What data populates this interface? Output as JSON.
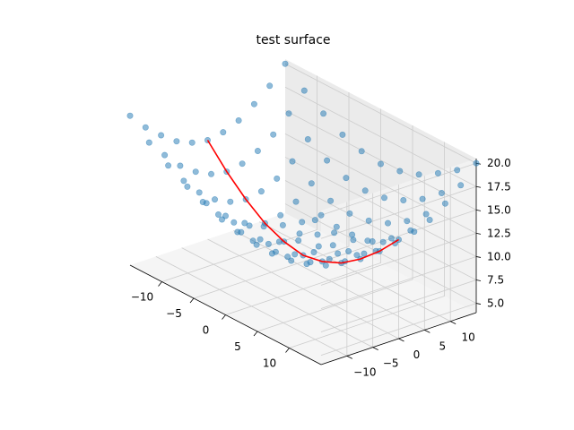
{
  "chart_data": {
    "type": "scatter",
    "projection": "3d",
    "title": "test surface",
    "xlabel": "",
    "ylabel": "",
    "zlabel": "",
    "xlim": [
      -15,
      15
    ],
    "ylim": [
      -15,
      15
    ],
    "zlim": [
      4,
      20.5
    ],
    "x_ticks": [
      -10,
      -5,
      0,
      5,
      10
    ],
    "x_tick_labels": [
      "−10",
      "−5",
      "0",
      "5",
      "10"
    ],
    "y_ticks": [
      -10,
      -5,
      0,
      5,
      10
    ],
    "y_tick_labels": [
      "−10",
      "−5",
      "0",
      "5",
      "10"
    ],
    "z_ticks": [
      5.0,
      7.5,
      10.0,
      12.5,
      15.0,
      17.5,
      20.0
    ],
    "z_tick_labels": [
      "5.0",
      "7.5",
      "10.0",
      "12.5",
      "15.0",
      "17.5",
      "20.0"
    ],
    "grid": true,
    "series": [
      {
        "kind": "scatter",
        "color": "#1f77b4",
        "alpha": 0.5,
        "x": [
          -15,
          -12,
          -9,
          -6,
          -3,
          0,
          3,
          6,
          9,
          12,
          15,
          -15,
          -12,
          -9,
          -6,
          -3,
          0,
          3,
          6,
          9,
          12,
          15,
          -15,
          -12,
          -9,
          -6,
          -3,
          0,
          3,
          6,
          9,
          12,
          15,
          -15,
          -12,
          -9,
          -6,
          -3,
          0,
          3,
          6,
          9,
          12,
          15,
          -15,
          -12,
          -9,
          -6,
          -3,
          0,
          3,
          6,
          9,
          12,
          15,
          -15,
          -12,
          -9,
          -6,
          -3,
          0,
          3,
          6,
          9,
          12,
          15,
          -15,
          -12,
          -9,
          -6,
          -3,
          0,
          3,
          6,
          9,
          12,
          15,
          -15,
          -12,
          -9,
          -6,
          -3,
          0,
          3,
          6,
          9,
          12,
          15,
          -15,
          -12,
          -9,
          -6,
          -3,
          0,
          3,
          6,
          9,
          12,
          15,
          -15,
          -12,
          -9,
          -6,
          -3,
          0,
          3,
          6,
          9,
          12,
          15,
          -15,
          -12,
          -9,
          -6,
          -3,
          0,
          3,
          6,
          9,
          12,
          15
        ],
        "y": [
          -15,
          -15,
          -15,
          -15,
          -15,
          -15,
          -15,
          -15,
          -15,
          -15,
          -15,
          -12,
          -12,
          -12,
          -12,
          -12,
          -12,
          -12,
          -12,
          -12,
          -12,
          -12,
          -9,
          -9,
          -9,
          -9,
          -9,
          -9,
          -9,
          -9,
          -9,
          -9,
          -9,
          -6,
          -6,
          -6,
          -6,
          -6,
          -6,
          -6,
          -6,
          -6,
          -6,
          -6,
          -3,
          -3,
          -3,
          -3,
          -3,
          -3,
          -3,
          -3,
          -3,
          -3,
          -3,
          0,
          0,
          0,
          0,
          0,
          0,
          0,
          0,
          0,
          0,
          0,
          3,
          3,
          3,
          3,
          3,
          3,
          3,
          3,
          3,
          3,
          3,
          6,
          6,
          6,
          6,
          6,
          6,
          6,
          6,
          6,
          6,
          6,
          9,
          9,
          9,
          9,
          9,
          9,
          9,
          9,
          9,
          9,
          9,
          12,
          12,
          12,
          12,
          12,
          12,
          12,
          12,
          12,
          12,
          12,
          15,
          15,
          15,
          15,
          15,
          15,
          15,
          15,
          15,
          15,
          15
        ],
        "z": [
          20.0,
          18.2,
          16.8,
          15.6,
          14.9,
          14.6,
          14.9,
          15.6,
          16.8,
          18.2,
          20.0,
          18.2,
          16.3,
          14.6,
          13.4,
          12.6,
          12.3,
          12.6,
          13.4,
          14.6,
          16.3,
          18.2,
          16.8,
          14.6,
          12.8,
          11.5,
          10.7,
          10.4,
          10.7,
          11.5,
          12.8,
          14.6,
          16.8,
          15.6,
          13.4,
          11.5,
          10.1,
          9.2,
          8.9,
          9.2,
          10.1,
          11.5,
          13.4,
          15.6,
          14.9,
          12.6,
          10.7,
          9.2,
          8.3,
          8.0,
          8.3,
          9.2,
          10.7,
          12.6,
          14.9,
          14.6,
          12.3,
          10.4,
          8.9,
          8.0,
          7.6,
          8.0,
          8.9,
          10.4,
          12.3,
          14.6,
          14.9,
          12.6,
          10.7,
          9.2,
          8.3,
          8.0,
          8.3,
          9.2,
          10.7,
          12.6,
          14.9,
          15.6,
          13.4,
          11.5,
          10.1,
          9.2,
          8.9,
          9.2,
          10.1,
          11.5,
          13.4,
          15.6,
          16.8,
          14.6,
          12.8,
          11.5,
          10.7,
          10.4,
          10.7,
          11.5,
          12.8,
          14.6,
          16.8,
          18.2,
          16.3,
          14.6,
          13.4,
          12.6,
          12.3,
          12.6,
          13.4,
          14.6,
          16.3,
          18.2,
          20.0,
          18.2,
          16.8,
          15.6,
          14.9,
          14.6,
          14.9,
          15.6,
          16.8,
          18.2,
          20.0
        ]
      },
      {
        "kind": "line",
        "color": "#ff0000",
        "x": [
          -15,
          -12,
          -9,
          -6,
          -3,
          0,
          3,
          6,
          9,
          12,
          15
        ],
        "y": [
          0,
          0,
          0,
          0,
          0,
          0,
          0,
          0,
          0,
          0,
          0
        ],
        "z": [
          14.6,
          12.3,
          10.4,
          8.9,
          8.0,
          7.6,
          8.0,
          8.9,
          10.4,
          12.3,
          14.6
        ]
      }
    ]
  }
}
